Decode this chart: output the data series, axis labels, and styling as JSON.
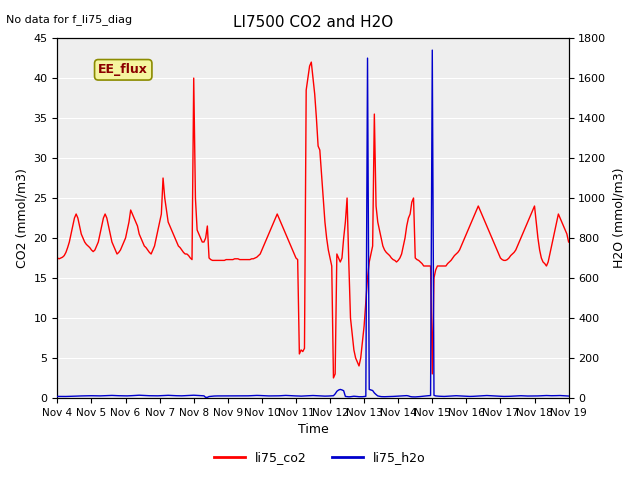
{
  "title": "LI7500 CO2 and H2O",
  "xlabel": "Time",
  "ylabel_left": "CO2 (mmol/m3)",
  "ylabel_right": "H2O (mmol/m3)",
  "annotation_top_left": "No data for f_li75_diag",
  "ee_flux_label": "EE_flux",
  "legend_labels": [
    "li75_co2",
    "li75_h2o"
  ],
  "co2_color": "#ff0000",
  "h2o_color": "#0000cc",
  "ylim_left": [
    0,
    45
  ],
  "ylim_right": [
    0,
    1800
  ],
  "background_color": "#ffffff",
  "plot_bg_color": "#eeeeee",
  "grid_color": "#ffffff",
  "x_start_days": 4,
  "x_end_days": 19,
  "x_ticks": [
    4,
    5,
    6,
    7,
    8,
    9,
    10,
    11,
    12,
    13,
    14,
    15,
    16,
    17,
    18,
    19
  ],
  "x_tick_labels": [
    "Nov 4",
    "Nov 5",
    "Nov 6",
    "Nov 7",
    "Nov 8",
    "Nov 9",
    "Nov 10",
    "Nov 11",
    "Nov 12",
    "Nov 13",
    "Nov 14",
    "Nov 15",
    "Nov 16",
    "Nov 17",
    "Nov 18",
    "Nov 19"
  ],
  "co2_data_x": [
    4.0,
    4.05,
    4.1,
    4.15,
    4.2,
    4.25,
    4.3,
    4.35,
    4.4,
    4.45,
    4.5,
    4.55,
    4.6,
    4.65,
    4.7,
    4.75,
    4.8,
    4.85,
    4.9,
    4.95,
    5.0,
    5.05,
    5.1,
    5.15,
    5.2,
    5.25,
    5.3,
    5.35,
    5.4,
    5.45,
    5.5,
    5.55,
    5.6,
    5.65,
    5.7,
    5.75,
    5.8,
    5.85,
    5.9,
    5.95,
    6.0,
    6.05,
    6.1,
    6.15,
    6.2,
    6.25,
    6.3,
    6.35,
    6.4,
    6.45,
    6.5,
    6.55,
    6.6,
    6.65,
    6.7,
    6.75,
    6.8,
    6.85,
    6.9,
    6.95,
    7.0,
    7.05,
    7.1,
    7.15,
    7.2,
    7.25,
    7.3,
    7.35,
    7.4,
    7.45,
    7.5,
    7.55,
    7.6,
    7.65,
    7.7,
    7.75,
    7.8,
    7.85,
    7.9,
    7.95,
    8.0,
    8.05,
    8.1,
    8.15,
    8.2,
    8.25,
    8.3,
    8.35,
    8.4,
    8.45,
    8.5,
    8.55,
    8.6,
    8.65,
    8.7,
    8.75,
    8.8,
    8.85,
    8.9,
    8.95,
    9.0,
    9.05,
    9.1,
    9.15,
    9.2,
    9.25,
    9.3,
    9.35,
    9.4,
    9.45,
    9.5,
    9.55,
    9.6,
    9.65,
    9.7,
    9.75,
    9.8,
    9.85,
    9.9,
    9.95,
    10.0,
    10.05,
    10.1,
    10.15,
    10.2,
    10.25,
    10.3,
    10.35,
    10.4,
    10.45,
    10.5,
    10.55,
    10.6,
    10.65,
    10.7,
    10.75,
    10.8,
    10.85,
    10.9,
    10.95,
    11.0,
    11.05,
    11.1,
    11.15,
    11.2,
    11.25,
    11.3,
    11.35,
    11.4,
    11.45,
    11.5,
    11.55,
    11.6,
    11.65,
    11.7,
    11.75,
    11.8,
    11.85,
    11.9,
    11.95,
    12.0,
    12.05,
    12.1,
    12.15,
    12.2,
    12.25,
    12.3,
    12.35,
    12.4,
    12.45,
    12.5,
    12.55,
    12.6,
    12.65,
    12.7,
    12.75,
    12.8,
    12.85,
    12.9,
    12.95,
    13.0,
    13.05,
    13.1,
    13.15,
    13.2,
    13.25,
    13.3,
    13.35,
    13.4,
    13.45,
    13.5,
    13.55,
    13.6,
    13.65,
    13.7,
    13.75,
    13.8,
    13.85,
    13.9,
    13.95,
    14.0,
    14.05,
    14.1,
    14.15,
    14.2,
    14.25,
    14.3,
    14.35,
    14.4,
    14.45,
    14.5,
    14.55,
    14.6,
    14.65,
    14.7,
    14.75,
    14.8,
    14.85,
    14.9,
    14.95,
    15.0,
    15.05,
    15.1,
    15.15,
    15.2,
    15.25,
    15.3,
    15.35,
    15.4,
    15.45,
    15.5,
    15.55,
    15.6,
    15.65,
    15.7,
    15.75,
    15.8,
    15.85,
    15.9,
    15.95,
    16.0,
    16.05,
    16.1,
    16.15,
    16.2,
    16.25,
    16.3,
    16.35,
    16.4,
    16.45,
    16.5,
    16.55,
    16.6,
    16.65,
    16.7,
    16.75,
    16.8,
    16.85,
    16.9,
    16.95,
    17.0,
    17.05,
    17.1,
    17.15,
    17.2,
    17.25,
    17.3,
    17.35,
    17.4,
    17.45,
    17.5,
    17.55,
    17.6,
    17.65,
    17.7,
    17.75,
    17.8,
    17.85,
    17.9,
    17.95,
    18.0,
    18.05,
    18.1,
    18.15,
    18.2,
    18.25,
    18.3,
    18.35,
    18.4,
    18.45,
    18.5,
    18.55,
    18.6,
    18.65,
    18.7,
    18.75,
    18.8,
    18.85,
    18.9,
    18.95,
    19.0
  ],
  "co2_data_y": [
    17.5,
    17.4,
    17.5,
    17.6,
    17.8,
    18.2,
    18.8,
    19.5,
    20.5,
    21.5,
    22.5,
    23.0,
    22.5,
    21.5,
    20.5,
    20.0,
    19.5,
    19.2,
    19.0,
    18.8,
    18.5,
    18.3,
    18.5,
    19.0,
    19.5,
    20.5,
    21.5,
    22.5,
    23.0,
    22.5,
    21.5,
    20.5,
    19.5,
    19.0,
    18.5,
    18.0,
    18.2,
    18.5,
    19.0,
    19.5,
    20.0,
    21.0,
    22.0,
    23.5,
    23.0,
    22.5,
    22.0,
    21.5,
    20.5,
    20.0,
    19.5,
    19.0,
    18.8,
    18.5,
    18.2,
    18.0,
    18.5,
    19.0,
    20.0,
    21.0,
    22.0,
    23.0,
    27.5,
    25.0,
    23.5,
    22.0,
    21.5,
    21.0,
    20.5,
    20.0,
    19.5,
    19.0,
    18.8,
    18.5,
    18.2,
    18.0,
    18.0,
    17.8,
    17.5,
    17.3,
    40.0,
    25.0,
    21.0,
    20.5,
    20.0,
    19.5,
    19.5,
    20.0,
    21.5,
    17.5,
    17.3,
    17.2,
    17.2,
    17.2,
    17.2,
    17.2,
    17.2,
    17.2,
    17.2,
    17.3,
    17.3,
    17.3,
    17.3,
    17.3,
    17.4,
    17.4,
    17.4,
    17.3,
    17.3,
    17.3,
    17.3,
    17.3,
    17.3,
    17.3,
    17.4,
    17.4,
    17.5,
    17.6,
    17.8,
    18.0,
    18.5,
    19.0,
    19.5,
    20.0,
    20.5,
    21.0,
    21.5,
    22.0,
    22.5,
    23.0,
    22.5,
    22.0,
    21.5,
    21.0,
    20.5,
    20.0,
    19.5,
    19.0,
    18.5,
    18.0,
    17.5,
    17.3,
    5.5,
    6.0,
    5.8,
    6.2,
    38.5,
    40.0,
    41.5,
    42.0,
    40.0,
    38.0,
    35.0,
    31.5,
    31.0,
    28.0,
    25.0,
    22.0,
    20.0,
    18.5,
    17.5,
    16.5,
    2.5,
    3.0,
    18.0,
    17.5,
    17.0,
    17.5,
    20.0,
    22.0,
    25.0,
    17.0,
    10.0,
    8.0,
    6.0,
    5.0,
    4.5,
    4.0,
    5.0,
    7.0,
    9.0,
    12.0,
    15.0,
    17.0,
    18.0,
    19.0,
    35.5,
    24.0,
    22.0,
    21.0,
    20.0,
    19.0,
    18.5,
    18.2,
    18.0,
    17.8,
    17.5,
    17.3,
    17.2,
    17.0,
    17.2,
    17.5,
    18.0,
    19.0,
    20.0,
    21.5,
    22.5,
    23.0,
    24.5,
    25.0,
    17.5,
    17.3,
    17.2,
    17.0,
    16.8,
    16.5,
    16.5,
    16.5,
    16.5,
    16.5,
    3.0,
    15.0,
    16.0,
    16.5,
    16.5,
    16.5,
    16.5,
    16.5,
    16.5,
    16.8,
    17.0,
    17.2,
    17.5,
    17.8,
    18.0,
    18.2,
    18.5,
    19.0,
    19.5,
    20.0,
    20.5,
    21.0,
    21.5,
    22.0,
    22.5,
    23.0,
    23.5,
    24.0,
    23.5,
    23.0,
    22.5,
    22.0,
    21.5,
    21.0,
    20.5,
    20.0,
    19.5,
    19.0,
    18.5,
    18.0,
    17.5,
    17.3,
    17.2,
    17.2,
    17.3,
    17.5,
    17.8,
    18.0,
    18.2,
    18.5,
    19.0,
    19.5,
    20.0,
    20.5,
    21.0,
    21.5,
    22.0,
    22.5,
    23.0,
    23.5,
    24.0,
    22.0,
    20.0,
    18.5,
    17.5,
    17.0,
    16.8,
    16.5,
    17.0,
    18.0,
    19.0,
    20.0,
    21.0,
    22.0,
    23.0,
    22.5,
    22.0,
    21.5,
    21.0,
    20.5,
    19.5
  ],
  "h2o_data_x": [
    4.0,
    4.05,
    4.1,
    4.15,
    4.2,
    4.25,
    4.3,
    4.35,
    4.4,
    4.45,
    4.5,
    4.55,
    4.6,
    4.65,
    4.7,
    4.75,
    4.8,
    4.85,
    4.9,
    4.95,
    5.0,
    5.05,
    5.1,
    5.15,
    5.2,
    5.25,
    5.3,
    5.35,
    5.4,
    5.45,
    5.5,
    5.55,
    5.6,
    5.65,
    5.7,
    5.75,
    5.8,
    5.85,
    5.9,
    5.95,
    6.0,
    6.05,
    6.1,
    6.15,
    6.2,
    6.25,
    6.3,
    6.35,
    6.4,
    6.45,
    6.5,
    6.55,
    6.6,
    6.65,
    6.7,
    6.75,
    6.8,
    6.85,
    6.9,
    6.95,
    7.0,
    7.05,
    7.1,
    7.15,
    7.2,
    7.25,
    7.3,
    7.35,
    7.4,
    7.45,
    7.5,
    7.55,
    7.6,
    7.65,
    7.7,
    7.75,
    7.8,
    7.85,
    7.9,
    7.95,
    8.0,
    8.05,
    8.1,
    8.15,
    8.2,
    8.25,
    8.3,
    8.35,
    8.4,
    8.45,
    8.5,
    8.55,
    8.6,
    8.65,
    8.7,
    8.75,
    8.8,
    8.85,
    8.9,
    8.95,
    9.0,
    9.05,
    9.1,
    9.15,
    9.2,
    9.25,
    9.3,
    9.35,
    9.4,
    9.45,
    9.5,
    9.55,
    9.6,
    9.65,
    9.7,
    9.75,
    9.8,
    9.85,
    9.9,
    9.95,
    10.0,
    10.05,
    10.1,
    10.15,
    10.2,
    10.25,
    10.3,
    10.35,
    10.4,
    10.45,
    10.5,
    10.55,
    10.6,
    10.65,
    10.7,
    10.75,
    10.8,
    10.85,
    10.9,
    10.95,
    11.0,
    11.05,
    11.1,
    11.15,
    11.2,
    11.25,
    11.3,
    11.35,
    11.4,
    11.45,
    11.5,
    11.55,
    11.6,
    11.65,
    11.7,
    11.75,
    11.8,
    11.85,
    11.9,
    11.95,
    12.0,
    12.05,
    12.1,
    12.15,
    12.2,
    12.25,
    12.3,
    12.35,
    12.4,
    12.45,
    12.5,
    12.55,
    12.6,
    12.65,
    12.7,
    12.75,
    12.8,
    12.85,
    12.9,
    12.95,
    13.0,
    13.05,
    13.1,
    13.15,
    13.2,
    13.25,
    13.3,
    13.35,
    13.4,
    13.45,
    13.5,
    13.55,
    13.6,
    13.65,
    13.7,
    13.75,
    13.8,
    13.85,
    13.9,
    13.95,
    14.0,
    14.05,
    14.1,
    14.15,
    14.2,
    14.25,
    14.3,
    14.35,
    14.4,
    14.45,
    14.5,
    14.55,
    14.6,
    14.65,
    14.7,
    14.75,
    14.8,
    14.85,
    14.9,
    14.95,
    15.0,
    15.05,
    15.1,
    15.15,
    15.2,
    15.25,
    15.3,
    15.35,
    15.4,
    15.45,
    15.5,
    15.55,
    15.6,
    15.65,
    15.7,
    15.75,
    15.8,
    15.85,
    15.9,
    15.95,
    16.0,
    16.05,
    16.1,
    16.15,
    16.2,
    16.25,
    16.3,
    16.35,
    16.4,
    16.45,
    16.5,
    16.55,
    16.6,
    16.65,
    16.7,
    16.75,
    16.8,
    16.85,
    16.9,
    16.95,
    17.0,
    17.05,
    17.1,
    17.15,
    17.2,
    17.25,
    17.3,
    17.35,
    17.4,
    17.45,
    17.5,
    17.55,
    17.6,
    17.65,
    17.7,
    17.75,
    17.8,
    17.85,
    17.9,
    17.95,
    18.0,
    18.05,
    18.1,
    18.15,
    18.2,
    18.25,
    18.3,
    18.35,
    18.4,
    18.45,
    18.5,
    18.55,
    18.6,
    18.65,
    18.7,
    18.75,
    18.8,
    18.85,
    18.9,
    18.95,
    19.0
  ],
  "h2o_data_y": [
    7.5,
    7.4,
    7.3,
    7.2,
    7.2,
    7.3,
    7.5,
    7.8,
    8.0,
    8.2,
    8.5,
    9.0,
    9.5,
    9.8,
    10.0,
    10.2,
    10.5,
    10.8,
    11.0,
    11.2,
    11.0,
    10.8,
    10.5,
    10.2,
    10.0,
    10.2,
    10.5,
    11.0,
    11.5,
    11.8,
    12.0,
    12.2,
    12.5,
    12.0,
    11.5,
    11.2,
    11.0,
    10.8,
    10.5,
    10.2,
    10.0,
    10.2,
    10.5,
    11.0,
    11.5,
    12.0,
    12.5,
    13.0,
    13.5,
    13.0,
    12.5,
    12.0,
    11.5,
    11.2,
    11.0,
    10.8,
    10.5,
    10.2,
    10.0,
    10.5,
    11.0,
    11.5,
    12.0,
    13.0,
    13.5,
    13.0,
    12.5,
    12.0,
    11.5,
    11.2,
    11.0,
    10.8,
    10.5,
    10.5,
    11.0,
    11.5,
    12.0,
    12.5,
    13.0,
    13.2,
    13.5,
    13.0,
    12.5,
    12.0,
    11.5,
    11.0,
    10.5,
    2.5,
    3.0,
    7.0,
    8.0,
    9.0,
    9.5,
    10.0,
    10.0,
    10.0,
    10.0,
    10.0,
    10.0,
    10.0,
    10.0,
    10.0,
    10.0,
    10.0,
    10.0,
    10.0,
    10.0,
    10.0,
    10.0,
    10.0,
    10.0,
    10.0,
    10.5,
    11.0,
    11.5,
    12.0,
    12.5,
    12.5,
    12.5,
    12.0,
    11.5,
    11.0,
    10.5,
    10.0,
    10.0,
    10.0,
    10.0,
    10.0,
    10.0,
    10.0,
    10.5,
    11.0,
    11.5,
    12.0,
    12.5,
    12.0,
    11.5,
    11.0,
    10.5,
    10.0,
    10.0,
    10.0,
    9.5,
    9.0,
    9.5,
    10.0,
    10.5,
    11.0,
    11.5,
    12.0,
    12.0,
    11.5,
    11.0,
    10.5,
    10.0,
    9.5,
    9.0,
    9.0,
    9.0,
    9.5,
    10.0,
    10.5,
    11.0,
    20.0,
    33.0,
    39.5,
    42.5,
    40.0,
    36.0,
    7.5,
    6.5,
    5.5,
    6.0,
    7.5,
    8.5,
    8.0,
    7.0,
    6.0,
    6.0,
    6.0,
    7.0,
    8.0,
    1700.0,
    42.5,
    40.0,
    37.0,
    25.0,
    17.0,
    10.0,
    8.0,
    6.5,
    6.0,
    6.0,
    6.5,
    6.5,
    7.0,
    7.0,
    7.5,
    8.0,
    8.5,
    9.0,
    9.5,
    10.0,
    10.5,
    11.0,
    11.5,
    10.0,
    7.0,
    5.5,
    5.0,
    5.0,
    5.5,
    6.0,
    7.0,
    8.0,
    9.0,
    10.0,
    10.5,
    11.0,
    12.0,
    1740.0,
    13.0,
    10.0,
    9.0,
    8.5,
    8.0,
    7.5,
    7.5,
    8.0,
    8.5,
    9.0,
    9.5,
    10.0,
    10.5,
    11.0,
    10.5,
    10.0,
    9.5,
    9.0,
    8.5,
    8.0,
    7.5,
    7.5,
    7.5,
    8.0,
    8.5,
    9.0,
    9.5,
    10.0,
    10.5,
    11.0,
    11.5,
    12.0,
    11.5,
    11.0,
    10.5,
    10.0,
    9.5,
    9.0,
    8.5,
    8.0,
    7.5,
    7.5,
    7.5,
    7.5,
    8.0,
    8.5,
    9.0,
    9.5,
    10.0,
    10.5,
    11.0,
    11.0,
    10.5,
    10.0,
    9.5,
    9.5,
    9.5,
    9.5,
    9.5,
    9.5,
    9.5,
    10.0,
    10.5,
    11.0,
    11.5,
    12.0,
    12.0,
    11.5,
    11.0,
    11.0,
    11.0,
    11.0,
    11.5,
    12.0,
    12.0,
    11.5,
    11.0,
    10.5,
    10.0,
    9.5
  ]
}
